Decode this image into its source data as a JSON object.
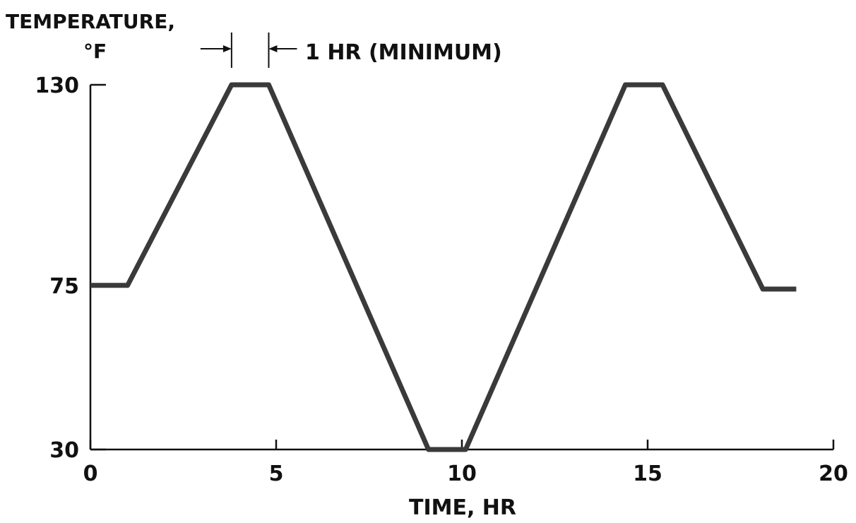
{
  "chart_data": {
    "type": "line",
    "ylabel_line1": "TEMPERATURE,",
    "ylabel_line2": "°F",
    "xlabel": "TIME, HR",
    "xlim": [
      0,
      20
    ],
    "ylim": [
      30,
      130
    ],
    "x_ticks": [
      0,
      5,
      10,
      15,
      20
    ],
    "x_tick_labels": [
      "0",
      "5",
      "10",
      "15",
      "20"
    ],
    "y_ticks": [
      30,
      75,
      130
    ],
    "y_tick_labels": [
      "30",
      "75",
      "130"
    ],
    "grid": false,
    "series": [
      {
        "x": [
          0,
          1,
          3.8,
          4.8,
          9.1,
          10.1,
          14.4,
          15.4,
          18.1,
          19
        ],
        "y": [
          75,
          75,
          130,
          130,
          30,
          30,
          130,
          130,
          74,
          74
        ]
      }
    ],
    "annotation": {
      "text": "1 HR (MINIMUM)",
      "from_x": 3.8,
      "to_x": 4.8
    }
  }
}
